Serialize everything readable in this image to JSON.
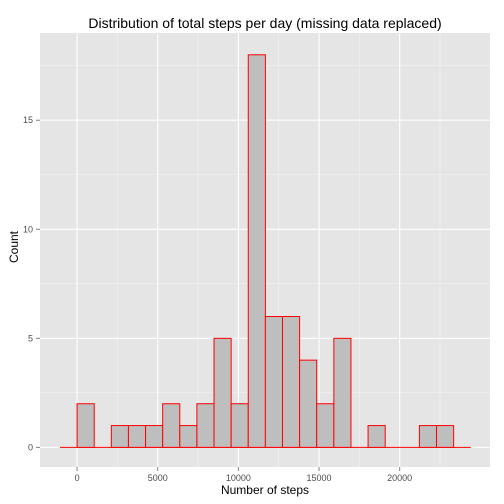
{
  "chart_data": {
    "type": "bar",
    "title": "Distribution of total steps per day (missing data replaced)",
    "xlabel": "Number of steps",
    "ylabel": "Count",
    "binwidth": 1061.2,
    "bins": [
      {
        "x0": 0,
        "x1": 1061.2,
        "count": 2
      },
      {
        "x0": 1061.2,
        "x1": 2122.4,
        "count": 0
      },
      {
        "x0": 2122.4,
        "x1": 3183.6,
        "count": 1
      },
      {
        "x0": 3183.6,
        "x1": 4244.8,
        "count": 1
      },
      {
        "x0": 4244.8,
        "x1": 5306.0,
        "count": 1
      },
      {
        "x0": 5306.0,
        "x1": 6367.2,
        "count": 2
      },
      {
        "x0": 6367.2,
        "x1": 7428.4,
        "count": 1
      },
      {
        "x0": 7428.4,
        "x1": 8489.6,
        "count": 2
      },
      {
        "x0": 8489.6,
        "x1": 9550.8,
        "count": 5
      },
      {
        "x0": 9550.8,
        "x1": 10612.0,
        "count": 2
      },
      {
        "x0": 10612.0,
        "x1": 11673.2,
        "count": 18
      },
      {
        "x0": 11673.2,
        "x1": 12734.4,
        "count": 6
      },
      {
        "x0": 12734.4,
        "x1": 13795.6,
        "count": 6
      },
      {
        "x0": 13795.6,
        "x1": 14856.8,
        "count": 4
      },
      {
        "x0": 14856.8,
        "x1": 15918.0,
        "count": 2
      },
      {
        "x0": 15918.0,
        "x1": 16979.2,
        "count": 5
      },
      {
        "x0": 16979.2,
        "x1": 18040.4,
        "count": 0
      },
      {
        "x0": 18040.4,
        "x1": 19101.6,
        "count": 1
      },
      {
        "x0": 19101.6,
        "x1": 20162.8,
        "count": 0
      },
      {
        "x0": 20162.8,
        "x1": 21224.0,
        "count": 0
      },
      {
        "x0": 21224.0,
        "x1": 22285.2,
        "count": 1
      },
      {
        "x0": 22285.2,
        "x1": 23346.4,
        "count": 1
      }
    ],
    "baseline": {
      "x0": -1061.2,
      "x1": 24407.6
    },
    "xlim": [
      -2300,
      25600
    ],
    "ylim": [
      -0.9,
      19.0
    ],
    "x_ticks": [
      0,
      5000,
      10000,
      15000,
      20000
    ],
    "x_tick_labels": [
      "0",
      "5000",
      "10000",
      "15000",
      "20000"
    ],
    "y_ticks": [
      0,
      5,
      10,
      15
    ],
    "y_tick_labels": [
      "0",
      "5",
      "10",
      "15"
    ],
    "grid": true,
    "colors": {
      "fill": "#bebebe",
      "outline": "#ff0000",
      "panel": "#e5e5e5",
      "grid_major": "#ffffff",
      "grid_minor": "#f2f2f2"
    }
  }
}
